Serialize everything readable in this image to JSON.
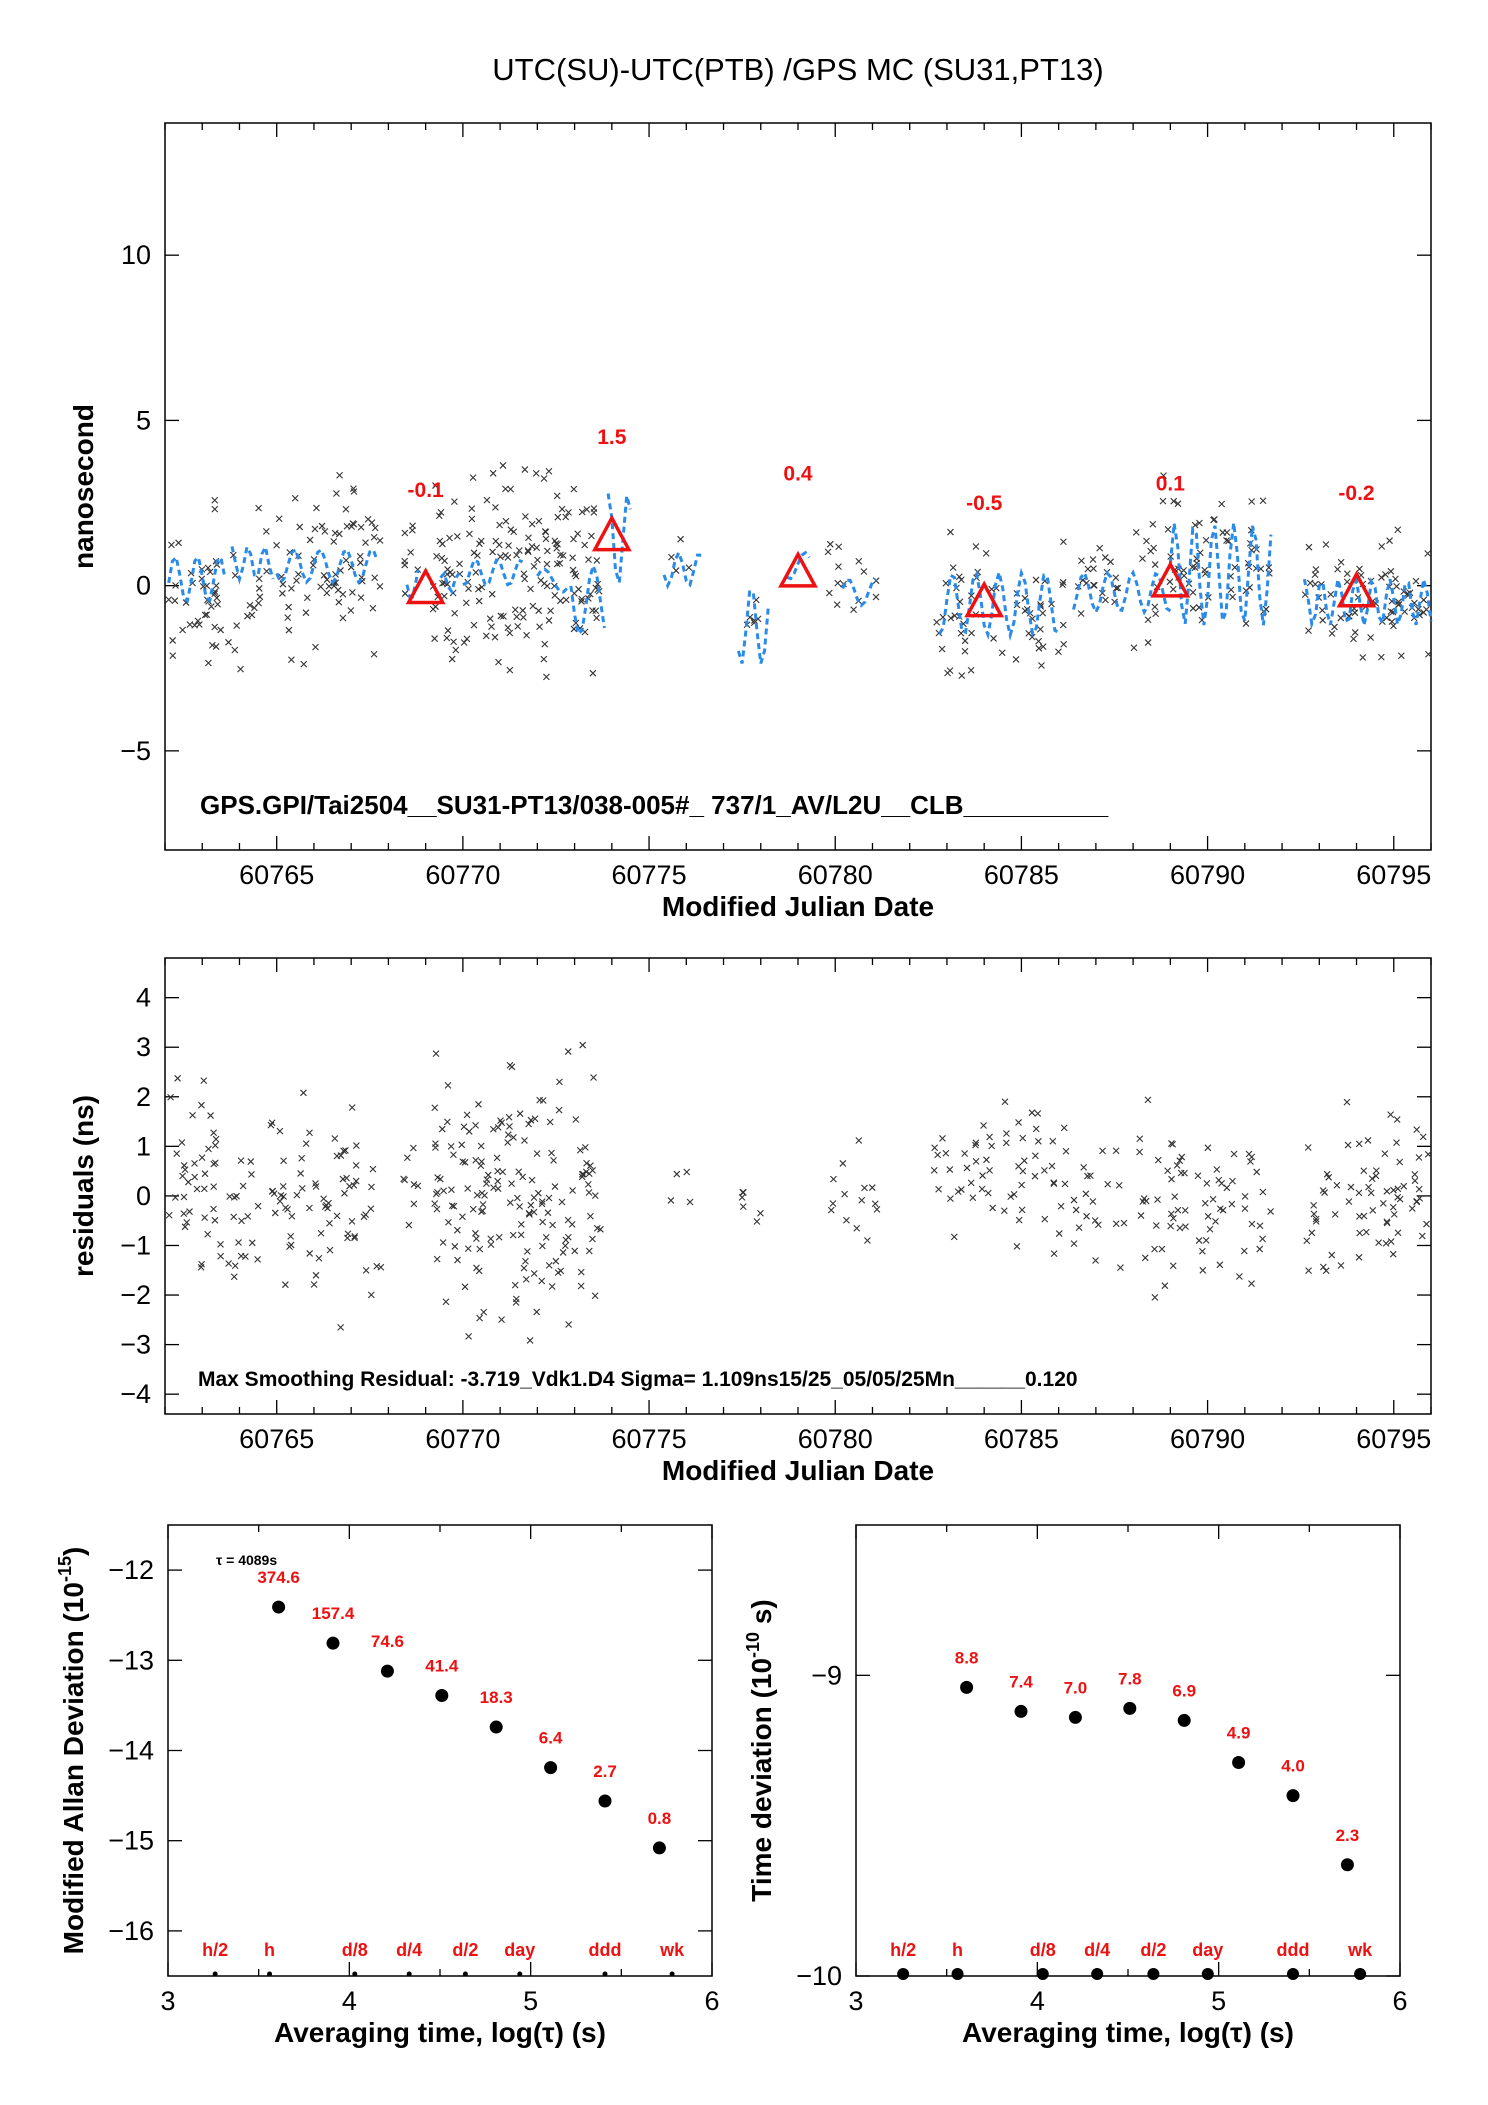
{
  "page_title": "UTC(SU)-UTC(PTB)  /GPS  MC  (SU31,PT13)",
  "colors": {
    "red": "#ee1111",
    "blue": "#2a8be8",
    "black": "#000000"
  },
  "chart_data": [
    {
      "id": "top",
      "type": "scatter",
      "xlabel": "Modified Julian Date",
      "ylabel": "nanosecond",
      "xlim": [
        60762,
        60796
      ],
      "ylim": [
        -8,
        14
      ],
      "xticks": [
        60765,
        60770,
        60775,
        60780,
        60785,
        60790,
        60795
      ],
      "yticks": [
        -5,
        0,
        5,
        10
      ],
      "annotation": "GPS.GPI/Tai2504__SU31-PT13/038-005#_  737/1_AV/L2U__CLB__________",
      "markers": [
        {
          "x": 60769.0,
          "y": -0.1,
          "label": "-0.1"
        },
        {
          "x": 60774.0,
          "y": 1.5,
          "label": "1.5"
        },
        {
          "x": 60779.0,
          "y": 0.4,
          "label": "0.4"
        },
        {
          "x": 60784.0,
          "y": -0.5,
          "label": "-0.5"
        },
        {
          "x": 60789.0,
          "y": 0.1,
          "label": "0.1"
        },
        {
          "x": 60794.0,
          "y": -0.2,
          "label": "-0.2"
        }
      ],
      "clusters": [
        [
          60762.1,
          60763.5,
          -3.5,
          3.0,
          40
        ],
        [
          60763.7,
          60767.8,
          -3.0,
          4.0,
          90
        ],
        [
          60768.4,
          60768.8,
          -1.5,
          3.0,
          8
        ],
        [
          60769.2,
          60773.7,
          -3.4,
          4.3,
          170
        ],
        [
          60775.5,
          60776.2,
          -1.0,
          2.0,
          4
        ],
        [
          60777.4,
          60778.0,
          -2.5,
          0.5,
          6
        ],
        [
          60779.8,
          60781.2,
          -1.2,
          1.5,
          14
        ],
        [
          60782.6,
          60786.2,
          -3.6,
          2.0,
          60
        ],
        [
          60786.4,
          60787.8,
          -2.0,
          2.0,
          20
        ],
        [
          60788.0,
          60791.7,
          -3.2,
          4.0,
          70
        ],
        [
          60792.6,
          60793.6,
          -2.0,
          2.0,
          18
        ],
        [
          60793.7,
          60796.0,
          -3.0,
          2.3,
          55
        ]
      ],
      "smooth": [
        [
          60762.1,
          60763.6,
          -0.5,
          0.9
        ],
        [
          60763.8,
          60764.9,
          0.2,
          1.2
        ],
        [
          60765.0,
          60767.7,
          0.1,
          1.1
        ],
        [
          60768.5,
          60768.8,
          -0.4,
          0.6
        ],
        [
          60769.4,
          60769.9,
          -0.2,
          0.4
        ],
        [
          60770.0,
          60771.6,
          0.0,
          0.8
        ],
        [
          60772.0,
          60772.8,
          -0.2,
          0.5
        ],
        [
          60772.9,
          60773.8,
          -1.5,
          0.6
        ],
        [
          60773.9,
          60774.5,
          0.0,
          2.8
        ],
        [
          60775.4,
          60776.4,
          0.0,
          1.0
        ],
        [
          60777.4,
          60778.2,
          -2.4,
          0.0
        ],
        [
          60778.7,
          60779.3,
          0.2,
          1.0
        ],
        [
          60780.2,
          60781.1,
          -0.6,
          0.2
        ],
        [
          60782.8,
          60786.0,
          -1.5,
          0.4
        ],
        [
          60786.4,
          60789.0,
          -0.8,
          0.4
        ],
        [
          60789.0,
          60791.7,
          -1.2,
          1.9
        ],
        [
          60792.6,
          60796.0,
          -1.2,
          0.2
        ]
      ]
    },
    {
      "id": "mid",
      "type": "scatter",
      "xlabel": "Modified Julian Date",
      "ylabel": "residuals (ns)",
      "xlim": [
        60762,
        60796
      ],
      "ylim": [
        -4.4,
        4.8
      ],
      "xticks": [
        60765,
        60770,
        60775,
        60780,
        60785,
        60790,
        60795
      ],
      "yticks": [
        -4,
        -3,
        -2,
        -1,
        0,
        1,
        2,
        3,
        4
      ],
      "annotation": "Max Smoothing Residual: -3.719_Vdk1.D4  Sigma= 1.109ns15/25_05/05/25Mn______0.120",
      "clusters": [
        [
          60762.1,
          60763.5,
          -2.7,
          2.8,
          40
        ],
        [
          60763.7,
          60767.8,
          -3.1,
          2.9,
          90
        ],
        [
          60768.4,
          60768.8,
          -1.0,
          1.8,
          8
        ],
        [
          60769.2,
          60773.7,
          -3.4,
          3.4,
          170
        ],
        [
          60775.5,
          60776.2,
          -0.9,
          1.0,
          4
        ],
        [
          60777.4,
          60778.0,
          -0.8,
          0.4,
          6
        ],
        [
          60779.8,
          60781.2,
          -1.5,
          1.5,
          14
        ],
        [
          60782.6,
          60786.2,
          -1.8,
          3.0,
          60
        ],
        [
          60786.4,
          60787.8,
          -1.8,
          1.5,
          20
        ],
        [
          60788.0,
          60791.7,
          -2.8,
          2.4,
          70
        ],
        [
          60792.6,
          60793.6,
          -2.5,
          1.2,
          18
        ],
        [
          60793.7,
          60796.0,
          -2.4,
          2.5,
          55
        ]
      ]
    },
    {
      "id": "mdev",
      "type": "scatter",
      "xlabel": "Averaging time, log(τ) (s)",
      "ylabel": "Modified Allan Deviation (10",
      "ylabel_sup": "-15",
      "ylabel_end": ")",
      "xlim": [
        3,
        6
      ],
      "ylim": [
        -16.5,
        -11.5
      ],
      "xticks": [
        3,
        4,
        5,
        6
      ],
      "yticks": [
        -16,
        -15,
        -14,
        -13,
        -12
      ],
      "tau_note": "τ = 4089s",
      "points": [
        {
          "x": 3.61,
          "y": -12.41,
          "label": "374.6"
        },
        {
          "x": 3.91,
          "y": -12.81,
          "label": "157.4"
        },
        {
          "x": 4.21,
          "y": -13.12,
          "label": "74.6"
        },
        {
          "x": 4.51,
          "y": -13.39,
          "label": "41.4"
        },
        {
          "x": 4.81,
          "y": -13.74,
          "label": "18.3"
        },
        {
          "x": 5.11,
          "y": -14.19,
          "label": "6.4"
        },
        {
          "x": 5.41,
          "y": -14.56,
          "label": "2.7"
        },
        {
          "x": 5.71,
          "y": -15.08,
          "label": "0.8"
        }
      ],
      "refs": [
        {
          "x": 3.26,
          "label": "h/2"
        },
        {
          "x": 3.56,
          "label": "h"
        },
        {
          "x": 4.03,
          "label": "d/8"
        },
        {
          "x": 4.33,
          "label": "d/4"
        },
        {
          "x": 4.64,
          "label": "d/2"
        },
        {
          "x": 4.94,
          "label": "day"
        },
        {
          "x": 5.41,
          "label": "ddd"
        },
        {
          "x": 5.78,
          "label": "wk"
        }
      ]
    },
    {
      "id": "tdev",
      "type": "scatter",
      "xlabel": "Averaging time, log(τ) (s)",
      "ylabel": "Time deviation (10",
      "ylabel_sup": "-10",
      "ylabel_end": " s)",
      "xlim": [
        3,
        6
      ],
      "ylim": [
        -10,
        -8.5
      ],
      "xticks": [
        3,
        4,
        5,
        6
      ],
      "yticks": [
        -10,
        -9
      ],
      "points": [
        {
          "x": 3.61,
          "y": -9.04,
          "label": "8.8"
        },
        {
          "x": 3.91,
          "y": -9.12,
          "label": "7.4"
        },
        {
          "x": 4.21,
          "y": -9.14,
          "label": "7.0"
        },
        {
          "x": 4.51,
          "y": -9.11,
          "label": "7.8"
        },
        {
          "x": 4.81,
          "y": -9.15,
          "label": "6.9"
        },
        {
          "x": 5.11,
          "y": -9.29,
          "label": "4.9"
        },
        {
          "x": 5.41,
          "y": -9.4,
          "label": "4.0"
        },
        {
          "x": 5.71,
          "y": -9.63,
          "label": "2.3"
        }
      ],
      "refs": [
        {
          "x": 3.26,
          "label": "h/2"
        },
        {
          "x": 3.56,
          "label": "h"
        },
        {
          "x": 4.03,
          "label": "d/8"
        },
        {
          "x": 4.33,
          "label": "d/4"
        },
        {
          "x": 4.64,
          "label": "d/2"
        },
        {
          "x": 4.94,
          "label": "day"
        },
        {
          "x": 5.41,
          "label": "ddd"
        },
        {
          "x": 5.78,
          "label": "wk"
        }
      ]
    }
  ]
}
